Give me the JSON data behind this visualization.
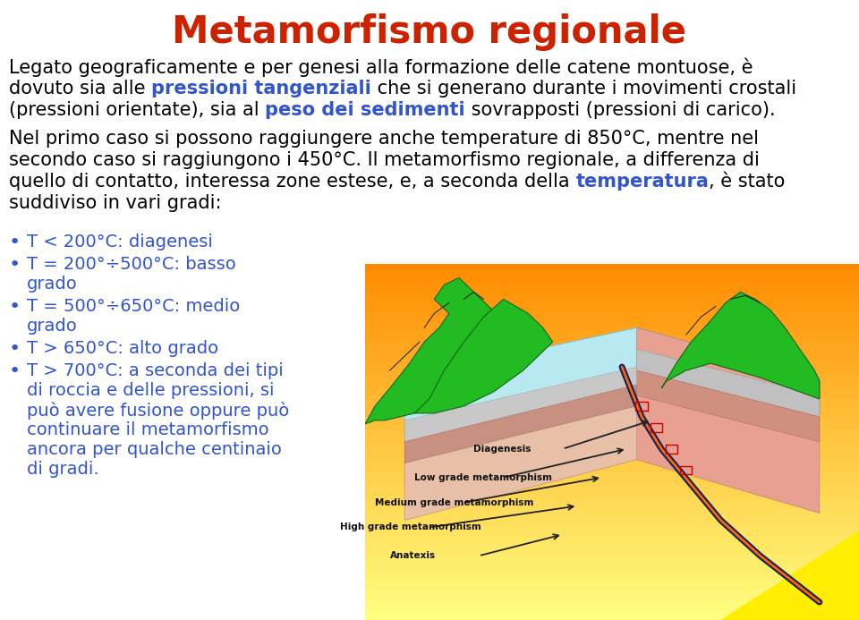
{
  "title": "Metamorfismo regionale",
  "title_color": "#CC2200",
  "bg_color": "#FFFFFF",
  "text_color": "#000000",
  "blue_highlight": "#3355CC",
  "bullet_color": "#3355CC",
  "font_size_title": 30,
  "font_size_body": 15,
  "font_size_bullet": 14,
  "line1": "Legato geograficamente e per genesi alla formazione delle catene montuose, è",
  "line2a": "dovuto sia alle ",
  "line2b": "pressioni tangenziali",
  "line2c": " che si generano durante i movimenti crostali",
  "line3a": "(pressioni orientate), sia al ",
  "line3b": "peso dei sedimenti",
  "line3c": " sovrapposti (pressioni di carico).",
  "line4": "Nel primo caso si possono raggiungere anche temperature di 850°C, mentre nel",
  "line5": "secondo caso si raggiungono i 450°C. Il metamorfismo regionale, a differenza di",
  "line6a": "quello di contatto, interessa zone estese, e, a seconda della ",
  "line6b": "temperatura",
  "line6c": ", è stato",
  "line7": "suddiviso in vari gradi:",
  "bullets": [
    "T < 200°C: diagenesi",
    "T = 200°÷500°C: basso\ngrado",
    "T = 500°÷650°C: medio\ngrado",
    "T > 650°C: alto grado",
    "T > 700°C: a seconda dei tipi\ndi roccia e delle pressioni, si\npuò avere fusione oppure può\ncontinuare il metamorfismo\nancora per qualche centinaio\ndi gradi."
  ],
  "diagram_labels": [
    "Diagenesis",
    "Low grade metamorphism",
    "Medium grade metamorphism",
    "High grade metamorphism",
    "Anatexis"
  ]
}
